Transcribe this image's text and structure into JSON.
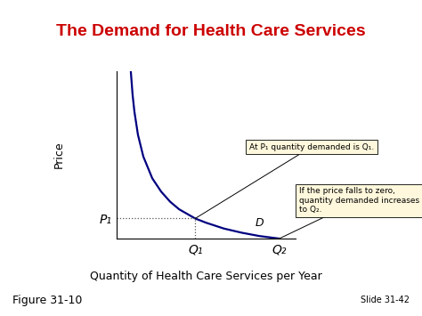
{
  "chart_data": {
    "type": "line",
    "title": "The Demand for Health Care Services",
    "x_label": "Quantity of Health Care Services per Year",
    "y_label": "Price",
    "x": [
      0.8,
      0.9,
      1.0,
      1.2,
      1.5,
      2.0,
      2.5,
      3.0,
      3.5,
      4.4,
      5.0,
      6.0,
      7.0,
      8.0,
      9.1
    ],
    "series": [
      {
        "name": "D",
        "color": "#000080",
        "values": [
          10,
          8.6,
          7.6,
          6.2,
          4.9,
          3.6,
          2.8,
          2.2,
          1.75,
          1.2,
          0.95,
          0.6,
          0.35,
          0.15,
          0.0
        ]
      }
    ],
    "xlim": [
      0,
      10
    ],
    "ylim": [
      0,
      10
    ],
    "xticks": [
      {
        "value": 4.4,
        "label": "Q₁"
      },
      {
        "value": 9.1,
        "label": "Q₂"
      }
    ],
    "yticks": [
      {
        "value": 1.2,
        "label": "P₁"
      }
    ],
    "annotations": [
      {
        "text": "At P₁ quantity demanded is Q₁.",
        "point": [
          4.4,
          1.2
        ]
      },
      {
        "text": "If the price falls to zero, quantity demanded increases to Q₂.",
        "point": [
          9.1,
          0
        ]
      }
    ],
    "figure_label": "Figure 31-10",
    "slide_label": "Slide 31-42"
  }
}
